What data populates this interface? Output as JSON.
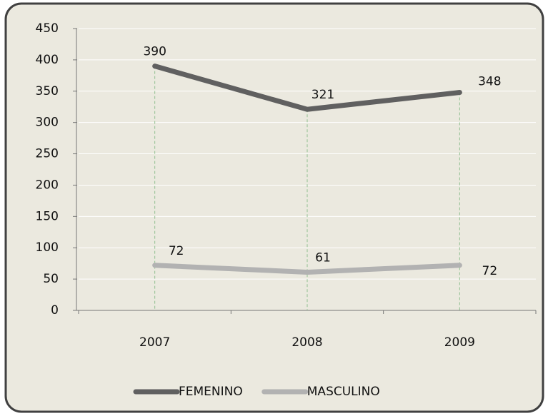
{
  "chart_data": {
    "type": "line",
    "categories": [
      "2007",
      "2008",
      "2009"
    ],
    "series": [
      {
        "name": "FEMENINO",
        "color": "#606060",
        "values": [
          390,
          321,
          348
        ]
      },
      {
        "name": "MASCULINO",
        "color": "#b2b2b2",
        "values": [
          72,
          61,
          72
        ]
      }
    ],
    "ylim": [
      0,
      450
    ],
    "yticks": [
      0,
      50,
      100,
      150,
      200,
      250,
      300,
      350,
      400,
      450
    ],
    "grid": true,
    "drop_lines": true,
    "legend": "bottom"
  }
}
